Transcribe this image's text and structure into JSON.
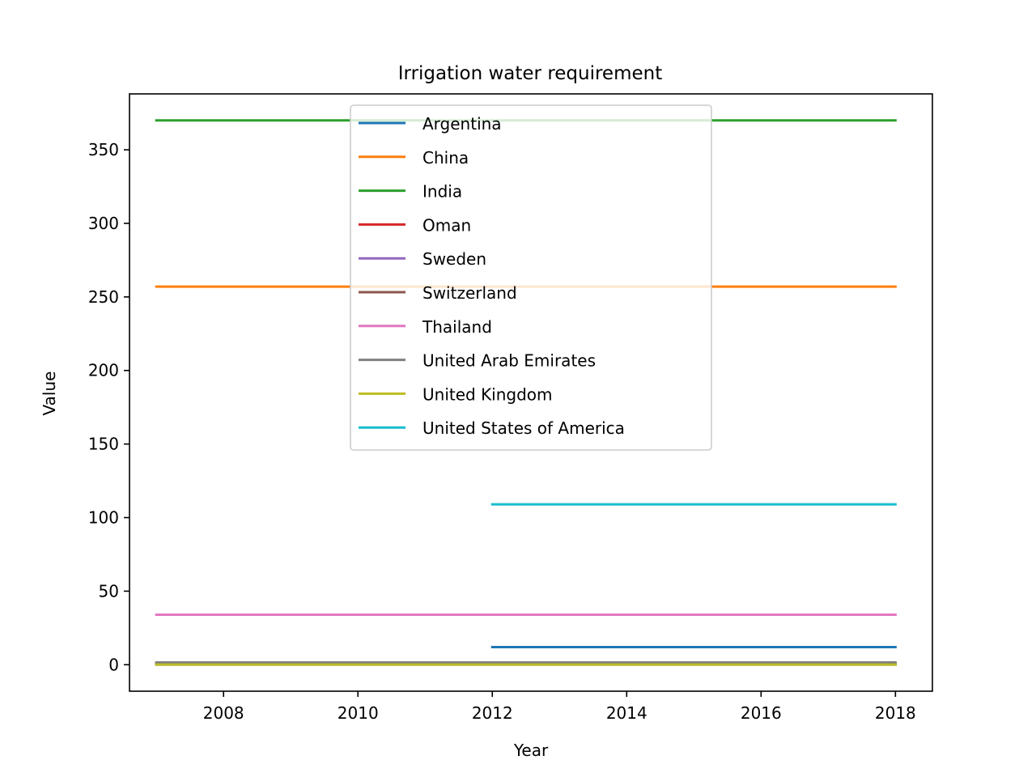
{
  "chart_data": {
    "type": "line",
    "title": "Irrigation water requirement",
    "xlabel": "Year",
    "ylabel": "Value",
    "xlim": [
      2006.6,
      2018.55
    ],
    "ylim": [
      -18,
      388
    ],
    "xticks": [
      2008,
      2010,
      2012,
      2014,
      2016,
      2018
    ],
    "yticks": [
      0,
      50,
      100,
      150,
      200,
      250,
      300,
      350
    ],
    "grid": false,
    "legend_position": "top-center",
    "series": [
      {
        "name": "Argentina",
        "color": "#1f77b4",
        "points": [
          [
            2012,
            12
          ],
          [
            2018,
            12
          ]
        ]
      },
      {
        "name": "China",
        "color": "#ff7f0e",
        "points": [
          [
            2007,
            257
          ],
          [
            2018,
            257
          ]
        ]
      },
      {
        "name": "India",
        "color": "#2ca02c",
        "points": [
          [
            2007,
            370
          ],
          [
            2018,
            370
          ]
        ]
      },
      {
        "name": "Oman",
        "color": "#d62728",
        "points": [
          [
            2007,
            1
          ],
          [
            2018,
            1
          ]
        ]
      },
      {
        "name": "Sweden",
        "color": "#9467bd",
        "points": [
          [
            2007,
            0.1
          ],
          [
            2018,
            0.1
          ]
        ]
      },
      {
        "name": "Switzerland",
        "color": "#8c564b",
        "points": [
          [
            2007,
            0.2
          ],
          [
            2018,
            0.2
          ]
        ]
      },
      {
        "name": "Thailand",
        "color": "#e377c2",
        "points": [
          [
            2007,
            34
          ],
          [
            2018,
            34
          ]
        ]
      },
      {
        "name": "United Arab Emirates",
        "color": "#7f7f7f",
        "points": [
          [
            2007,
            1.5
          ],
          [
            2018,
            1.5
          ]
        ]
      },
      {
        "name": "United Kingdom",
        "color": "#bcbd22",
        "points": [
          [
            2007,
            0.1
          ],
          [
            2018,
            0.1
          ]
        ]
      },
      {
        "name": "United States of America",
        "color": "#17becf",
        "points": [
          [
            2012,
            109
          ],
          [
            2018,
            109
          ]
        ]
      }
    ]
  }
}
